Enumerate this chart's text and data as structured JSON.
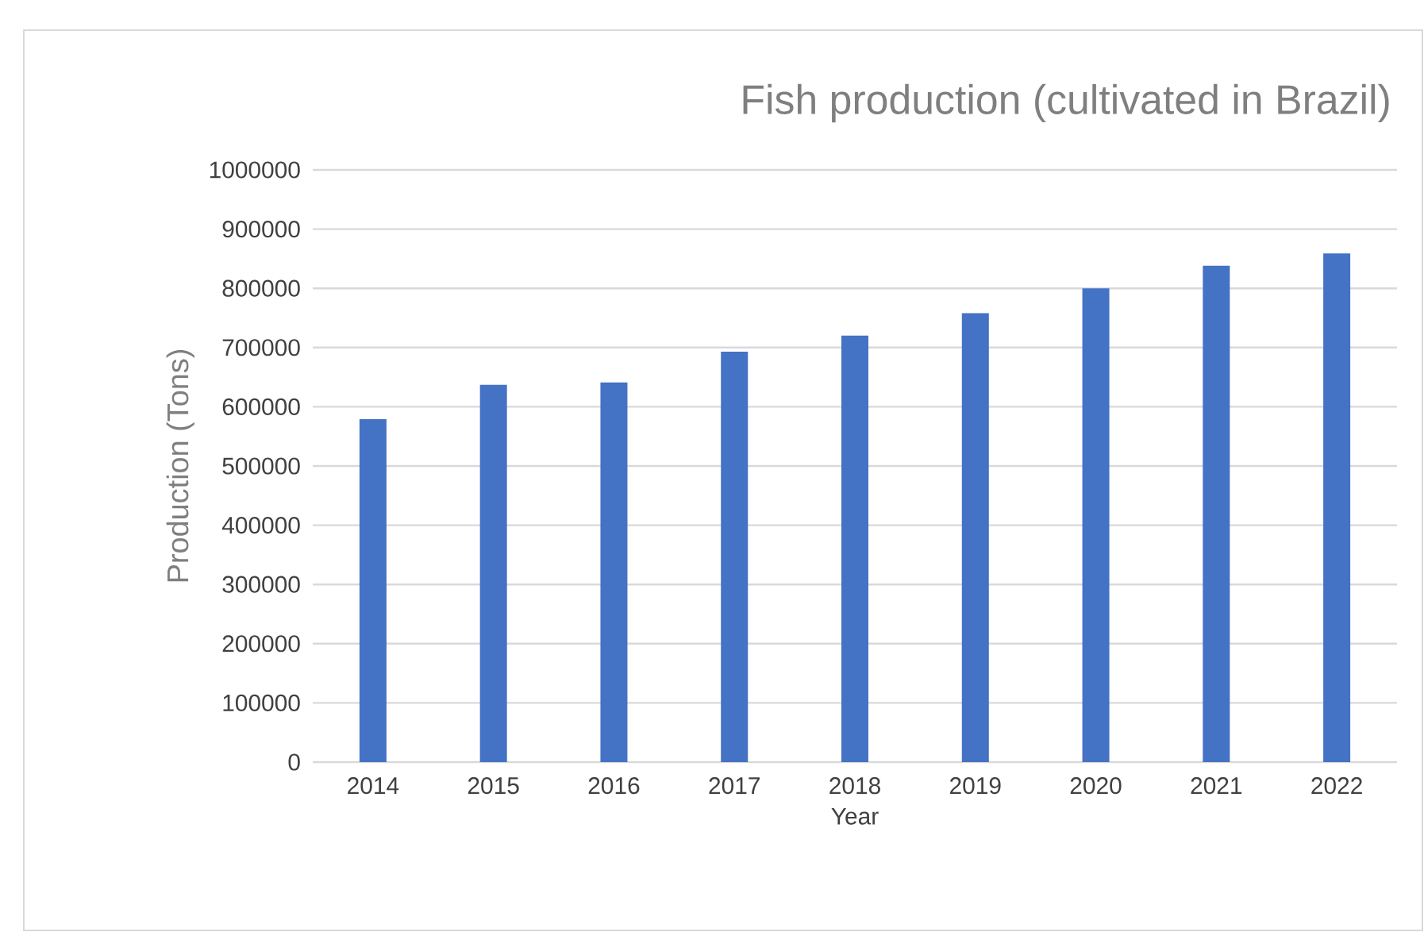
{
  "chart_data": {
    "type": "bar",
    "title": "Fish production (cultivated in Brazil)",
    "xlabel": "Year",
    "ylabel": "Production (Tons)",
    "categories": [
      "2014",
      "2015",
      "2016",
      "2017",
      "2018",
      "2019",
      "2020",
      "2021",
      "2022"
    ],
    "values": [
      579000,
      637000,
      641000,
      693000,
      720000,
      758000,
      800000,
      838000,
      859000
    ],
    "color": "#4472c4",
    "ylim": [
      0,
      1000000
    ],
    "yticks": [
      0,
      100000,
      200000,
      300000,
      400000,
      500000,
      600000,
      700000,
      800000,
      900000,
      1000000
    ],
    "grid": "y"
  }
}
